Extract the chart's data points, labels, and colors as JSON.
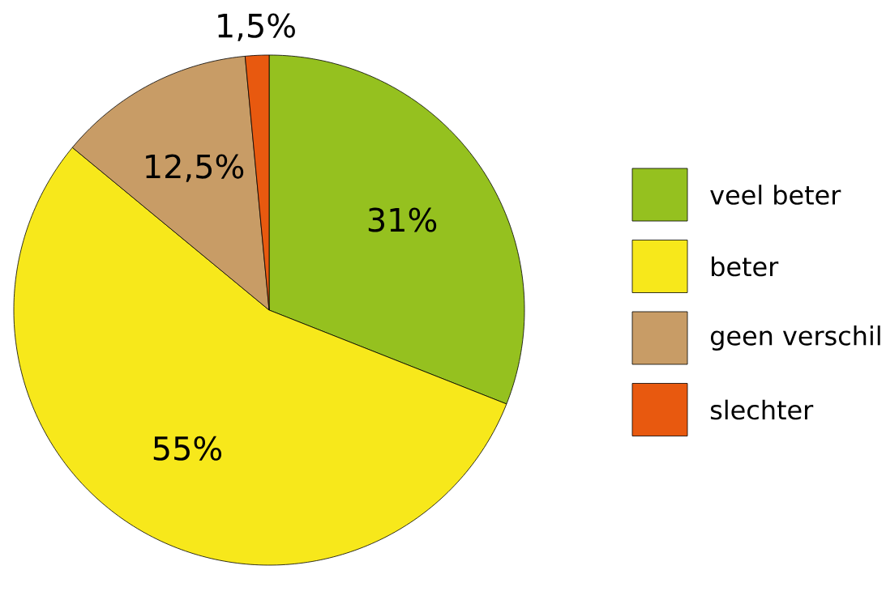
{
  "chart_data": {
    "type": "pie",
    "categories": [
      "veel beter",
      "beter",
      "geen verschil",
      "slechter"
    ],
    "values": [
      31,
      55,
      12.5,
      1.5
    ],
    "colors": [
      "#95c11f",
      "#f7e81b",
      "#c89c66",
      "#e8590f"
    ],
    "value_labels": [
      "31%",
      "55%",
      "12,5%",
      "1,5%"
    ],
    "legend": "right"
  }
}
